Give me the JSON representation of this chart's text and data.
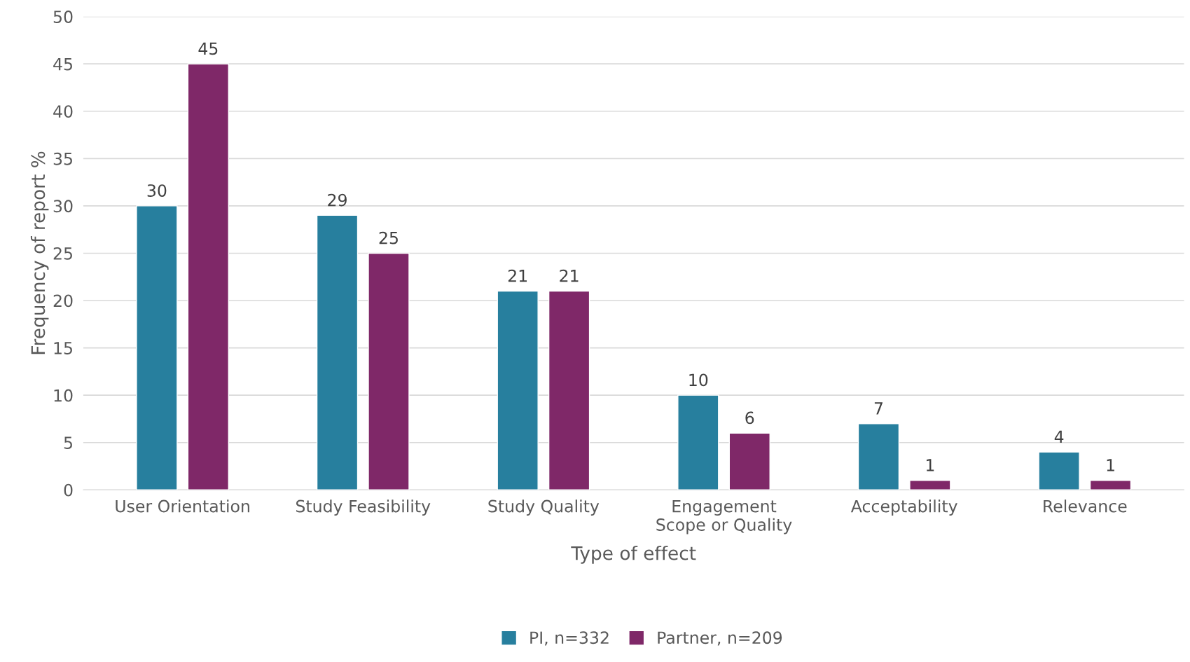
{
  "chart_data": {
    "type": "bar",
    "xlabel": "Type of effect",
    "ylabel": "Frequency of report %",
    "categories": [
      "User Orientation",
      "Study Feasibility",
      "Study Quality",
      "Engagement\nScope or Quality",
      "Acceptability",
      "Relevance"
    ],
    "series": [
      {
        "name": "PI, n=332",
        "color": "#277f9e",
        "values": [
          30,
          29,
          21,
          10,
          7,
          4
        ]
      },
      {
        "name": "Partner, n=209",
        "color": "#7f2868",
        "values": [
          45,
          25,
          21,
          6,
          1,
          1
        ]
      }
    ],
    "ylim": [
      0,
      50
    ],
    "yticks": [
      0,
      5,
      10,
      15,
      20,
      25,
      30,
      35,
      40,
      45,
      50
    ],
    "grid": "y",
    "legend": "bottom",
    "data_labels": true
  }
}
